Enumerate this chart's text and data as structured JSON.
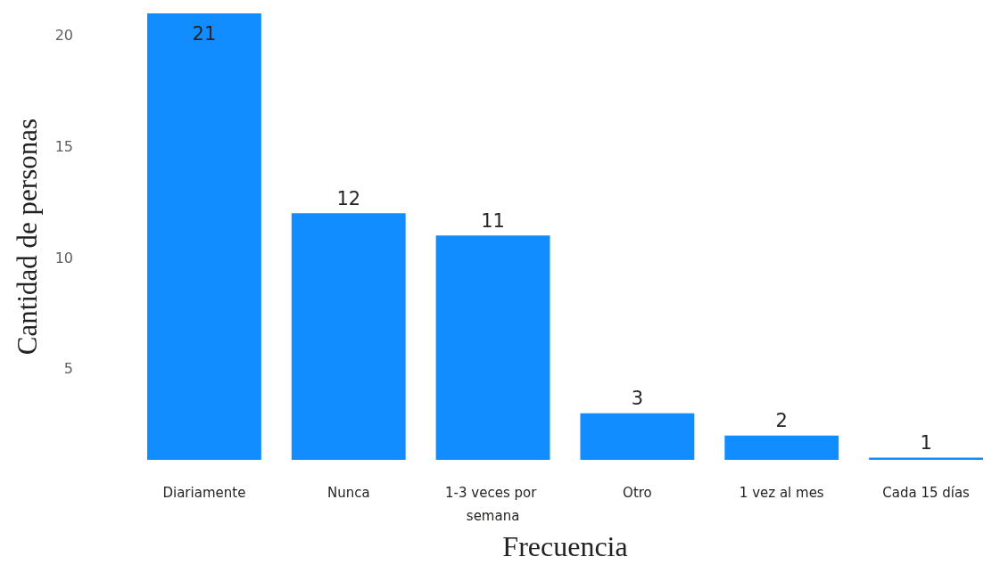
{
  "chart_data": {
    "type": "bar",
    "xlabel": "Frecuencia",
    "ylabel": "Cantidad de personas",
    "categories": [
      "Diariamente",
      "Nunca",
      "1-3 veces por semana",
      "Otro",
      "1 vez al mes",
      "Cada 15 días"
    ],
    "values": [
      21,
      12,
      11,
      3,
      2,
      1
    ],
    "color": "#118dff",
    "ylim": [
      0.9,
      21
    ],
    "yticks": [
      5,
      10,
      15,
      20
    ],
    "data_labels": true
  }
}
